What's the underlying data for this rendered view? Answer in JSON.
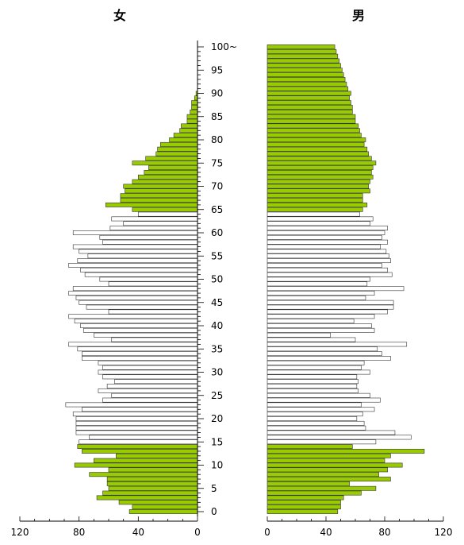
{
  "chart_data": {
    "type": "bar",
    "orientation": "horizontal",
    "female_title": "女",
    "male_title": "男",
    "age_labels": [
      "0",
      "5",
      "10",
      "15",
      "20",
      "25",
      "30",
      "35",
      "40",
      "45",
      "50",
      "55",
      "60",
      "65",
      "70",
      "75",
      "80",
      "85",
      "90",
      "95",
      "100~"
    ],
    "female_ticks": [
      "120",
      "80",
      "40",
      "0"
    ],
    "male_ticks": [
      "0",
      "40",
      "80",
      "120"
    ],
    "xlim": [
      0,
      120
    ],
    "highlight_color": "#99cc00",
    "plain_color": "#ffffff",
    "bar_stroke": "#333333",
    "highlight_ranges": [
      [
        0,
        14
      ],
      [
        65,
        100
      ]
    ],
    "ages": [
      0,
      1,
      2,
      3,
      4,
      5,
      6,
      7,
      8,
      9,
      10,
      11,
      12,
      13,
      14,
      15,
      16,
      17,
      18,
      19,
      20,
      21,
      22,
      23,
      24,
      25,
      26,
      27,
      28,
      29,
      30,
      31,
      32,
      33,
      34,
      35,
      36,
      37,
      38,
      39,
      40,
      41,
      42,
      43,
      44,
      45,
      46,
      47,
      48,
      49,
      50,
      51,
      52,
      53,
      54,
      55,
      56,
      57,
      58,
      59,
      60,
      61,
      62,
      63,
      64,
      65,
      66,
      67,
      68,
      69,
      70,
      71,
      72,
      73,
      74,
      75,
      76,
      77,
      78,
      79,
      80,
      81,
      82,
      83,
      84,
      85,
      86,
      87,
      88,
      89,
      90,
      91,
      92,
      93,
      94,
      95,
      96,
      97,
      98,
      99,
      100
    ],
    "series": [
      {
        "name": "女",
        "values": [
          46,
          44,
          53,
          68,
          64,
          60,
          61,
          61,
          73,
          60,
          83,
          70,
          55,
          78,
          81,
          80,
          73,
          82,
          82,
          82,
          82,
          84,
          78,
          89,
          64,
          58,
          67,
          61,
          56,
          64,
          67,
          64,
          67,
          78,
          78,
          81,
          87,
          58,
          70,
          77,
          79,
          83,
          87,
          60,
          75,
          80,
          82,
          87,
          84,
          60,
          66,
          76,
          79,
          87,
          81,
          74,
          80,
          84,
          64,
          66,
          84,
          59,
          50,
          58,
          40,
          44,
          62,
          52,
          52,
          49,
          50,
          44,
          40,
          36,
          33,
          44,
          35,
          28,
          27,
          25,
          19,
          16,
          12,
          11,
          7,
          7,
          5,
          4,
          4,
          2,
          1,
          0,
          0,
          0,
          0,
          0,
          0,
          0,
          0,
          0,
          0
        ]
      },
      {
        "name": "男",
        "values": [
          48,
          50,
          50,
          52,
          64,
          74,
          56,
          84,
          76,
          82,
          92,
          80,
          84,
          107,
          58,
          74,
          98,
          87,
          67,
          66,
          61,
          65,
          73,
          64,
          77,
          70,
          62,
          61,
          62,
          61,
          70,
          64,
          66,
          84,
          78,
          75,
          95,
          60,
          43,
          73,
          71,
          59,
          73,
          82,
          86,
          86,
          67,
          73,
          93,
          68,
          70,
          85,
          82,
          78,
          84,
          83,
          81,
          77,
          82,
          78,
          80,
          82,
          70,
          72,
          63,
          65,
          68,
          65,
          65,
          70,
          69,
          70,
          72,
          71,
          72,
          74,
          71,
          69,
          68,
          66,
          67,
          64,
          63,
          62,
          60,
          60,
          58,
          58,
          57,
          56,
          57,
          55,
          54,
          53,
          52,
          51,
          50,
          49,
          48,
          47,
          46
        ]
      }
    ]
  }
}
